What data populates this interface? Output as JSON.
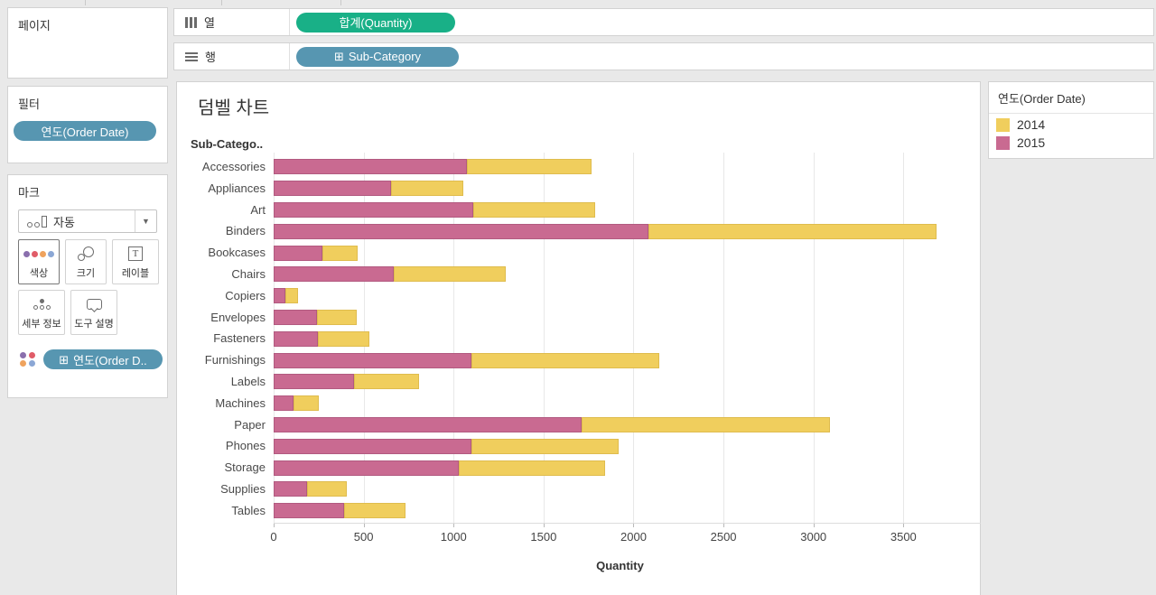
{
  "cards": {
    "pages": {
      "title": "페이지"
    },
    "filters": {
      "title": "필터",
      "pill": {
        "label": "연도(Order Date)",
        "color": "#5796B1"
      }
    },
    "marks": {
      "title": "마크",
      "mark_type_label": "자동",
      "buttons": [
        {
          "label": "색상",
          "icon": "color-icon",
          "selected": true
        },
        {
          "label": "크기",
          "icon": "size-icon",
          "selected": false
        },
        {
          "label": "레이블",
          "icon": "label-icon",
          "selected": false
        },
        {
          "label": "세부 정보",
          "icon": "detail-icon",
          "selected": false
        },
        {
          "label": "도구 설명",
          "icon": "tooltip-icon",
          "selected": false
        }
      ],
      "pill": {
        "icon": "⊞",
        "label": "연도(Order D..",
        "color": "#5796B1"
      },
      "color_dots": [
        "#8A6FAD",
        "#E05C68",
        "#EFA35E",
        "#8BA7D5"
      ]
    }
  },
  "shelves": {
    "columns": {
      "label": "열",
      "pill": {
        "label": "합계(Quantity)",
        "color": "#19B087"
      }
    },
    "rows": {
      "label": "행",
      "pill": {
        "icon": "⊞",
        "label": "Sub-Category",
        "color": "#5796B1"
      }
    }
  },
  "chart_data": {
    "type": "bar",
    "orientation": "horizontal-stacked",
    "title": "덤벨 차트",
    "column_header": "Sub-Catego..",
    "xlabel": "Quantity",
    "x_ticks": [
      0,
      500,
      1000,
      1500,
      2000,
      2500,
      3000,
      3500
    ],
    "xlim": [
      0,
      3930
    ],
    "grid": true,
    "categories": [
      "Accessories",
      "Appliances",
      "Art",
      "Binders",
      "Bookcases",
      "Chairs",
      "Copiers",
      "Envelopes",
      "Fasteners",
      "Furnishings",
      "Labels",
      "Machines",
      "Paper",
      "Phones",
      "Storage",
      "Supplies",
      "Tables"
    ],
    "series": [
      {
        "name": "2015",
        "color": "#C96A91",
        "border": "#B25A80",
        "values": [
          1075,
          650,
          1110,
          2085,
          270,
          670,
          65,
          240,
          245,
          1100,
          445,
          110,
          1710,
          1100,
          1030,
          185,
          390
        ]
      },
      {
        "name": "2014",
        "color": "#F0CE5D",
        "border": "#DFBC4E",
        "values": [
          690,
          405,
          675,
          1600,
          195,
          620,
          70,
          220,
          285,
          1045,
          365,
          140,
          1380,
          815,
          810,
          220,
          345
        ]
      }
    ],
    "legend": {
      "title": "연도(Order Date)",
      "position": "right",
      "entries": [
        {
          "label": "2014",
          "color": "#F0CE5D"
        },
        {
          "label": "2015",
          "color": "#C96A91"
        }
      ]
    }
  }
}
